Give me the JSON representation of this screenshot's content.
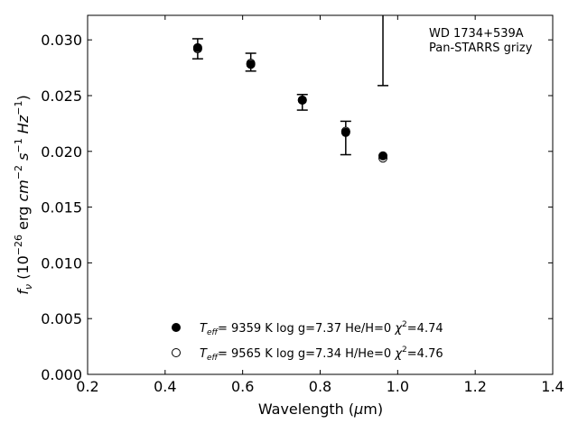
{
  "chart_data": {
    "type": "scatter",
    "xlabel": "Wavelength (μm)",
    "ylabel": "f_ν (10^-26 erg cm^-2 s^-1 Hz^-1)",
    "xlim": [
      0.2,
      1.4
    ],
    "ylim": [
      0.0,
      0.0322
    ],
    "xticks": [
      "0.2",
      "0.4",
      "0.6",
      "0.8",
      "1.0",
      "1.2",
      "1.4"
    ],
    "yticks": [
      "0.000",
      "0.005",
      "0.010",
      "0.015",
      "0.020",
      "0.025",
      "0.030"
    ],
    "grid": false,
    "annotation": {
      "line1": "WD 1734+539A",
      "line2": "Pan-STARRS grizy"
    },
    "observed": {
      "x": [
        0.484,
        0.621,
        0.754,
        0.866,
        0.962
      ],
      "y": [
        0.0292,
        0.028,
        0.0244,
        0.0222,
        0.0195
      ],
      "err_low": [
        0.0009,
        0.0008,
        0.0007,
        0.0025,
        0.0
      ],
      "err_high": [
        0.0009,
        0.0008,
        0.0007,
        0.0005,
        0.0
      ]
    },
    "upper_errorbar": {
      "x": 0.962,
      "y_low": 0.0259
    },
    "series": [
      {
        "marker": "filled",
        "label_teff": "9359 K",
        "label_logg": "log g=7.37",
        "label_comp": "He/H=0",
        "label_chi2": "=4.74",
        "x": [
          0.484,
          0.621,
          0.754,
          0.866,
          0.962
        ],
        "y": [
          0.0293,
          0.0278,
          0.0246,
          0.0217,
          0.0196
        ]
      },
      {
        "marker": "open",
        "label_teff": "9565 K",
        "label_logg": "log g=7.34",
        "label_comp": "H/He=0",
        "label_chi2": "=4.76",
        "x": [
          0.484,
          0.621,
          0.754,
          0.866,
          0.962
        ],
        "y": [
          0.0292,
          0.0279,
          0.0246,
          0.0218,
          0.0194
        ]
      }
    ]
  }
}
